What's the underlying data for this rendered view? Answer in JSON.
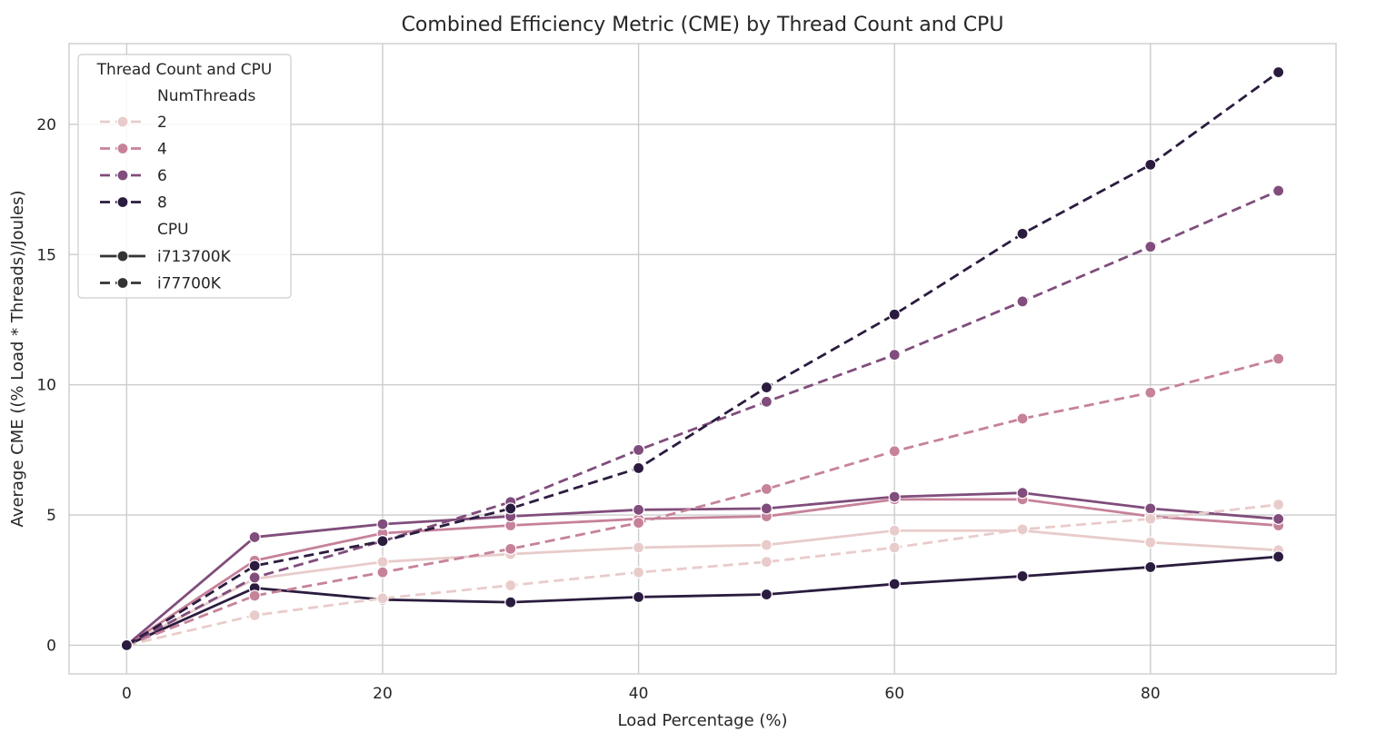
{
  "chart_data": {
    "type": "line",
    "title": "Combined Efficiency Metric (CME) by Thread Count and CPU",
    "xlabel": "Load Percentage (%)",
    "ylabel": "Average CME ((% Load * Threads)/Joules)",
    "xlim": [
      -4.5,
      94.5
    ],
    "ylim": [
      -1.1,
      23.1
    ],
    "xticks": [
      0,
      20,
      40,
      60,
      80
    ],
    "yticks": [
      0,
      5,
      10,
      15,
      20
    ],
    "grid": true,
    "x": [
      0,
      10,
      20,
      30,
      40,
      50,
      60,
      70,
      80,
      90
    ],
    "legend": {
      "title": "Thread Count and CPU",
      "placement": "top-left",
      "hue_title": "NumThreads",
      "style_title": "CPU",
      "hue_entries": [
        {
          "label": "2",
          "color": "#e8cccb"
        },
        {
          "label": "4",
          "color": "#c6829a"
        },
        {
          "label": "6",
          "color": "#804d7c"
        },
        {
          "label": "8",
          "color": "#2b1c3f"
        }
      ],
      "style_entries": [
        {
          "label": "i713700K",
          "dash": "solid"
        },
        {
          "label": "i77700K",
          "dash": "dashed"
        }
      ]
    },
    "series": [
      {
        "threads": "2",
        "cpu": "i713700K",
        "color": "#e8cccb",
        "dash": "solid",
        "values": [
          0,
          2.55,
          3.2,
          3.5,
          3.75,
          3.85,
          4.4,
          4.4,
          3.95,
          3.65
        ]
      },
      {
        "threads": "4",
        "cpu": "i713700K",
        "color": "#c6829a",
        "dash": "solid",
        "values": [
          0,
          3.25,
          4.3,
          4.6,
          4.85,
          4.95,
          5.6,
          5.6,
          4.95,
          4.6
        ]
      },
      {
        "threads": "6",
        "cpu": "i713700K",
        "color": "#804d7c",
        "dash": "solid",
        "values": [
          0,
          4.15,
          4.65,
          4.95,
          5.2,
          5.25,
          5.7,
          5.85,
          5.25,
          4.85
        ]
      },
      {
        "threads": "8",
        "cpu": "i713700K",
        "color": "#2b1c3f",
        "dash": "solid",
        "values": [
          0,
          2.2,
          1.75,
          1.65,
          1.85,
          1.95,
          2.35,
          2.65,
          3.0,
          3.4
        ]
      },
      {
        "threads": "2",
        "cpu": "i77700K",
        "color": "#e8cccb",
        "dash": "dashed",
        "values": [
          0,
          1.15,
          1.8,
          2.3,
          2.8,
          3.2,
          3.75,
          4.45,
          4.85,
          5.4
        ]
      },
      {
        "threads": "4",
        "cpu": "i77700K",
        "color": "#c6829a",
        "dash": "dashed",
        "values": [
          0,
          1.9,
          2.8,
          3.7,
          4.7,
          6.0,
          7.45,
          8.7,
          9.7,
          11.0
        ]
      },
      {
        "threads": "6",
        "cpu": "i77700K",
        "color": "#804d7c",
        "dash": "dashed",
        "values": [
          0,
          2.6,
          4.0,
          5.5,
          7.5,
          9.35,
          11.15,
          13.2,
          15.3,
          17.45
        ]
      },
      {
        "threads": "8",
        "cpu": "i77700K",
        "color": "#2b1c3f",
        "dash": "dashed",
        "values": [
          0,
          3.05,
          4.0,
          5.25,
          6.8,
          9.9,
          12.7,
          15.8,
          18.45,
          22.0
        ]
      }
    ]
  }
}
